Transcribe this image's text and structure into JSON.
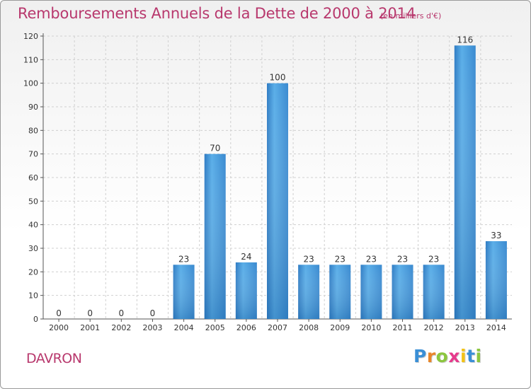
{
  "title": "Remboursements Annuels de la Dette de 2000 à 2014",
  "subtitle": "(en milliers d'€)",
  "commune": "DAVRON",
  "logo": {
    "letters": [
      "P",
      "r",
      "o",
      "x",
      "i",
      "t",
      "i"
    ],
    "colors": [
      "#3a8fd6",
      "#e8862a",
      "#8cc63f",
      "#e63a8c",
      "#f2c318",
      "#3a8fd6",
      "#8cc63f"
    ]
  },
  "chart_data": {
    "type": "bar",
    "categories": [
      "2000",
      "2001",
      "2002",
      "2003",
      "2004",
      "2005",
      "2006",
      "2007",
      "2008",
      "2009",
      "2010",
      "2011",
      "2012",
      "2013",
      "2014"
    ],
    "values": [
      0,
      0,
      0,
      0,
      23,
      70,
      24,
      100,
      23,
      23,
      23,
      23,
      23,
      116,
      33
    ],
    "ylim": [
      0,
      120
    ],
    "yticks": [
      0,
      10,
      20,
      30,
      40,
      50,
      60,
      70,
      80,
      90,
      100,
      110,
      120
    ],
    "grid": true,
    "bar_color": "#3d8fd4",
    "xlabel": "",
    "ylabel": ""
  }
}
